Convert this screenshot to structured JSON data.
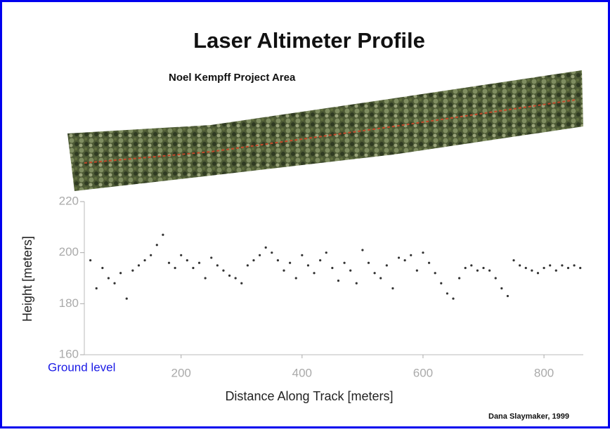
{
  "chart_data": {
    "type": "scatter",
    "title": "Laser Altimeter Profile",
    "subtitle": "Noel Kempff Project Area",
    "x_label": "Distance Along Track [meters]",
    "y_label": "Height [meters]",
    "annotation": "Ground level",
    "credit": "Dana Slaymaker, 1999",
    "color": "#333333",
    "xlim": [
      40,
      865
    ],
    "xticks": [
      200,
      400,
      600,
      800
    ],
    "ylim": [
      160,
      220
    ],
    "yticks": [
      160,
      180,
      200,
      220
    ],
    "x": [
      50,
      60,
      70,
      80,
      90,
      100,
      110,
      120,
      130,
      140,
      150,
      160,
      170,
      180,
      190,
      200,
      210,
      220,
      230,
      240,
      250,
      260,
      270,
      280,
      290,
      300,
      310,
      320,
      330,
      340,
      350,
      360,
      370,
      380,
      390,
      400,
      410,
      420,
      430,
      440,
      450,
      460,
      470,
      480,
      490,
      500,
      510,
      520,
      530,
      540,
      550,
      560,
      570,
      580,
      590,
      600,
      610,
      620,
      630,
      640,
      650,
      660,
      670,
      680,
      690,
      700,
      710,
      720,
      730,
      740,
      750,
      760,
      770,
      780,
      790,
      800,
      810,
      820,
      830,
      840,
      850,
      860
    ],
    "values": [
      197,
      186,
      194,
      190,
      188,
      192,
      182,
      193,
      195,
      197,
      199,
      203,
      207,
      196,
      194,
      199,
      197,
      194,
      196,
      190,
      198,
      195,
      193,
      191,
      190,
      188,
      195,
      197,
      199,
      202,
      200,
      197,
      193,
      196,
      190,
      199,
      195,
      192,
      197,
      200,
      194,
      189,
      196,
      193,
      188,
      201,
      196,
      192,
      190,
      195,
      186,
      198,
      197,
      199,
      193,
      200,
      196,
      192,
      188,
      184,
      182,
      190,
      194,
      195,
      193,
      194,
      193,
      190,
      186,
      183,
      197,
      195,
      194,
      193,
      192,
      194,
      195,
      193,
      195,
      194,
      195,
      194
    ]
  }
}
